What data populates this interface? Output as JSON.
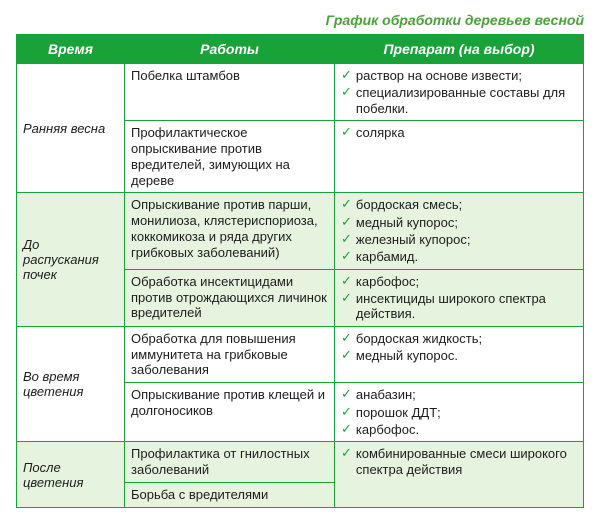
{
  "title": "График обработки деревьев весной",
  "colors": {
    "header_bg": "#18a238",
    "header_text": "#ffffff",
    "title_color": "#4aa33a",
    "border_color": "#18a238",
    "alt_row_bg": "#e6f3de",
    "row_bg": "#ffffff",
    "text_color": "#1d1d1d",
    "check_color": "#18a238"
  },
  "columns": [
    "Время",
    "Работы",
    "Препарат (на выбор)"
  ],
  "rows": [
    {
      "time": "Ранняя весна",
      "band": "norm",
      "rowspan": 2,
      "work": "Побелка штамбов",
      "prep": [
        "раствор на основе извести;",
        "специализированные составы для побелки."
      ]
    },
    {
      "band": "norm",
      "work": "Профилактическое опрыскивание против вредителей, зимующих на дереве",
      "prep": [
        "солярка"
      ]
    },
    {
      "time": "До распускания почек",
      "band": "alt",
      "rowspan": 2,
      "work": "Опрыскивание против парши, монилиоза, клястериспориоза, коккомикоза и ряда других грибковых заболеваний)",
      "prep": [
        "бордоская смесь;",
        "медный купорос;",
        "железный купорос;",
        "карбамид."
      ]
    },
    {
      "band": "alt",
      "work": "Обработка инсектицидами против отрождающихся личинок вредителей",
      "prep": [
        "карбофос;",
        "инсектициды широкого спектра действия."
      ]
    },
    {
      "time": "Во время цветения",
      "band": "norm",
      "rowspan": 2,
      "work": "Обработка для повышения иммунитета на грибковые заболевания",
      "prep": [
        "бордоская жидкость;",
        "медный купорос."
      ]
    },
    {
      "band": "norm",
      "work": "Опрыскивание против клещей и долгоносиков",
      "prep": [
        "анабазин;",
        "порошок ДДТ;",
        "карбофос."
      ]
    },
    {
      "time": "После цветения",
      "band": "alt",
      "rowspan": 2,
      "work": "Профилактика от гнилостных заболеваний",
      "prep": [
        "комбинированные смеси широкого спектра действия"
      ],
      "prep_rowspan": 2
    },
    {
      "band": "alt",
      "work": "Борьба с вредителями"
    }
  ]
}
